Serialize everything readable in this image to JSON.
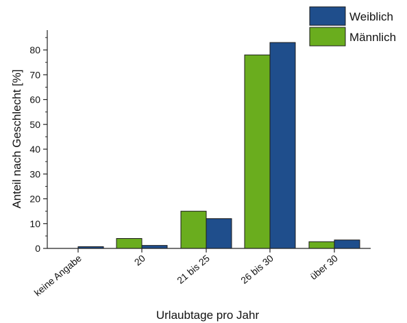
{
  "chart_data": {
    "type": "bar",
    "title": "",
    "xlabel": "Urlaubtage pro Jahr",
    "ylabel": "Anteil nach Geschlecht [%]",
    "categories": [
      "keine Angabe",
      "20",
      "21 bis 25",
      "26 bis 30",
      "über 30"
    ],
    "series": [
      {
        "name": "Männlich",
        "color": "#6aad1e",
        "values": [
          0,
          4,
          15,
          78,
          2.7
        ]
      },
      {
        "name": "Weiblich",
        "color": "#1f4e8c",
        "values": [
          0.7,
          1.2,
          12,
          83,
          3.4
        ]
      }
    ],
    "yticks": [
      0,
      10,
      20,
      30,
      40,
      50,
      60,
      70,
      80
    ],
    "ylim": [
      0,
      88
    ],
    "grid": false,
    "legend": {
      "placement": "top-right",
      "order": [
        "Weiblich",
        "Männlich"
      ]
    }
  }
}
